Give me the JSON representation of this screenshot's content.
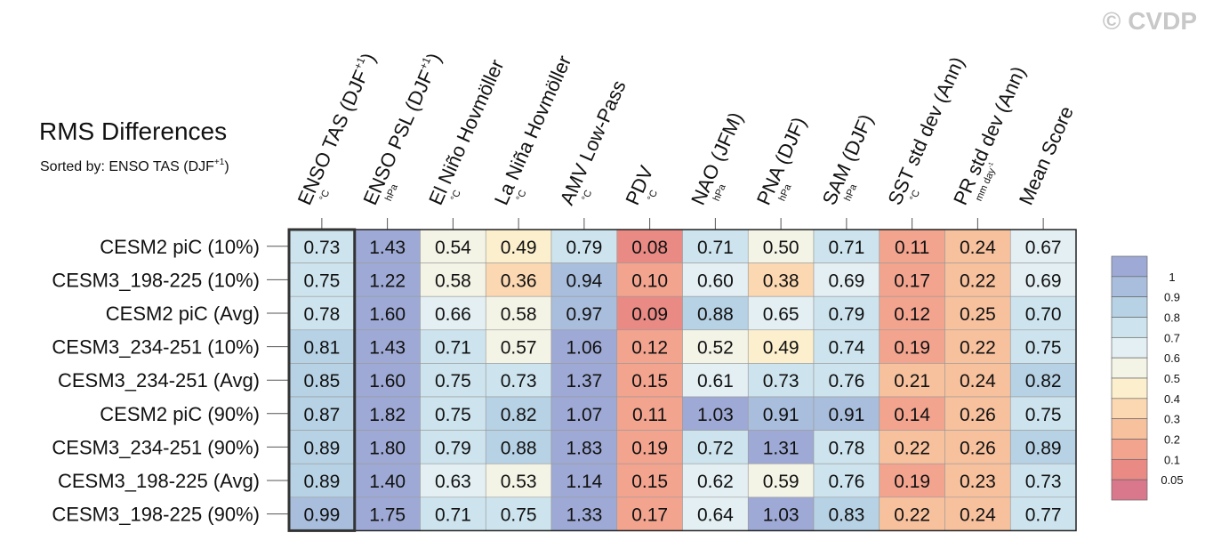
{
  "chart_data": {
    "type": "heatmap",
    "title": "RMS Differences",
    "subtitle": {
      "text": "Sorted by: ENSO TAS (DJF",
      "sup": "+1",
      "end": ")"
    },
    "watermark": "© CVDP",
    "highlight_column": 0,
    "columns": [
      {
        "text": "ENSO TAS (DJF",
        "sup": "+1",
        "end": ")",
        "unit": "°C"
      },
      {
        "text": "ENSO PSL (DJF",
        "sup": "+1",
        "end": ")",
        "unit": "hPa"
      },
      {
        "text": "El Niño Hovmöller",
        "unit": "°C"
      },
      {
        "text": "La Niña Hovmöller",
        "unit": "°C"
      },
      {
        "text": "AMV Low-Pass",
        "unit": "°C"
      },
      {
        "text": "PDV",
        "unit": "°C"
      },
      {
        "text": "NAO (JFM)",
        "unit": "hPa"
      },
      {
        "text": "PNA (DJF)",
        "unit": "hPa"
      },
      {
        "text": "SAM (DJF)",
        "unit": "hPa"
      },
      {
        "text": "SST std dev (Ann)",
        "unit": "°C"
      },
      {
        "text": "PR std dev (Ann)",
        "unit": "mm day",
        "unit_sup": "-1"
      },
      {
        "text": "Mean Score"
      }
    ],
    "rows": [
      "CESM2 piC (10%)",
      "CESM3_198-225 (10%)",
      "CESM2 piC (Avg)",
      "CESM3_234-251 (10%)",
      "CESM3_234-251 (Avg)",
      "CESM2 piC (90%)",
      "CESM3_234-251 (90%)",
      "CESM3_198-225 (Avg)",
      "CESM3_198-225 (90%)"
    ],
    "values": [
      [
        0.73,
        1.43,
        0.54,
        0.49,
        0.79,
        0.08,
        0.71,
        0.5,
        0.71,
        0.11,
        0.24,
        0.67
      ],
      [
        0.75,
        1.22,
        0.58,
        0.36,
        0.94,
        0.1,
        0.6,
        0.38,
        0.69,
        0.17,
        0.22,
        0.69
      ],
      [
        0.78,
        1.6,
        0.66,
        0.58,
        0.97,
        0.09,
        0.88,
        0.65,
        0.79,
        0.12,
        0.25,
        0.7
      ],
      [
        0.81,
        1.43,
        0.71,
        0.57,
        1.06,
        0.12,
        0.52,
        0.49,
        0.74,
        0.19,
        0.22,
        0.75
      ],
      [
        0.85,
        1.6,
        0.75,
        0.73,
        1.37,
        0.15,
        0.61,
        0.73,
        0.76,
        0.21,
        0.24,
        0.82
      ],
      [
        0.87,
        1.82,
        0.75,
        0.82,
        1.07,
        0.11,
        1.03,
        0.91,
        0.91,
        0.14,
        0.26,
        0.75
      ],
      [
        0.89,
        1.8,
        0.79,
        0.88,
        1.83,
        0.19,
        0.72,
        1.31,
        0.78,
        0.22,
        0.26,
        0.89
      ],
      [
        0.89,
        1.4,
        0.63,
        0.53,
        1.14,
        0.15,
        0.62,
        0.59,
        0.76,
        0.19,
        0.23,
        0.73
      ],
      [
        0.99,
        1.75,
        0.71,
        0.75,
        1.33,
        0.17,
        0.64,
        1.03,
        0.83,
        0.22,
        0.24,
        0.77
      ]
    ],
    "value_labels": [
      [
        "0.73",
        "1.43",
        "0.54",
        "0.49",
        "0.79",
        "0.08",
        "0.71",
        "0.50",
        "0.71",
        "0.11",
        "0.24",
        "0.67"
      ],
      [
        "0.75",
        "1.22",
        "0.58",
        "0.36",
        "0.94",
        "0.10",
        "0.60",
        "0.38",
        "0.69",
        "0.17",
        "0.22",
        "0.69"
      ],
      [
        "0.78",
        "1.60",
        "0.66",
        "0.58",
        "0.97",
        "0.09",
        "0.88",
        "0.65",
        "0.79",
        "0.12",
        "0.25",
        "0.70"
      ],
      [
        "0.81",
        "1.43",
        "0.71",
        "0.57",
        "1.06",
        "0.12",
        "0.52",
        "0.49",
        "0.74",
        "0.19",
        "0.22",
        "0.75"
      ],
      [
        "0.85",
        "1.60",
        "0.75",
        "0.73",
        "1.37",
        "0.15",
        "0.61",
        "0.73",
        "0.76",
        "0.21",
        "0.24",
        "0.82"
      ],
      [
        "0.87",
        "1.82",
        "0.75",
        "0.82",
        "1.07",
        "0.11",
        "1.03",
        "0.91",
        "0.91",
        "0.14",
        "0.26",
        "0.75"
      ],
      [
        "0.89",
        "1.80",
        "0.79",
        "0.88",
        "1.83",
        "0.19",
        "0.72",
        "1.31",
        "0.78",
        "0.22",
        "0.26",
        "0.89"
      ],
      [
        "0.89",
        "1.40",
        "0.63",
        "0.53",
        "1.14",
        "0.15",
        "0.62",
        "0.59",
        "0.76",
        "0.19",
        "0.23",
        "0.73"
      ],
      [
        "0.99",
        "1.75",
        "0.71",
        "0.75",
        "1.33",
        "0.17",
        "0.64",
        "1.03",
        "0.83",
        "0.22",
        "0.24",
        "0.77"
      ]
    ],
    "levels": [
      0.05,
      0.1,
      0.2,
      0.3,
      0.4,
      0.5,
      0.6,
      0.7,
      0.8,
      0.9,
      1
    ],
    "colors": [
      "#d9788c",
      "#e98a85",
      "#f2a48f",
      "#f7c19e",
      "#fbd8b2",
      "#fcefcd",
      "#f3f3e6",
      "#e3eff3",
      "#cde4ee",
      "#b7d2e5",
      "#a9bedd",
      "#9eaad5"
    ]
  }
}
